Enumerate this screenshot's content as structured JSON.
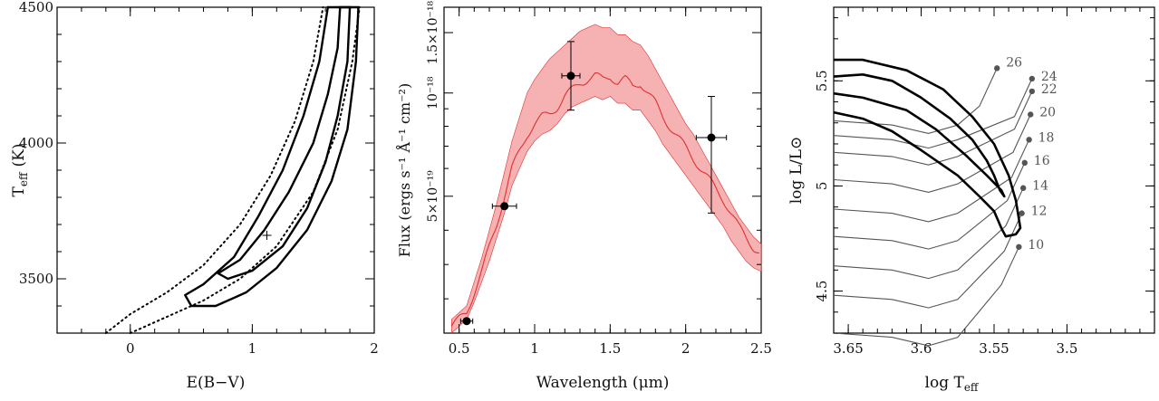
{
  "figure": "three-panel astrophysics figure",
  "chart_data": [
    {
      "type": "contour",
      "panel": "left",
      "xlabel": "E(B−V)",
      "ylabel_main": "T",
      "ylabel_sub": "eff",
      "ylabel_unit": "(K)",
      "xlim": [
        -0.6,
        2.0
      ],
      "ylim": [
        3300,
        4500
      ],
      "xticks": [
        0,
        1,
        2
      ],
      "xtick_labels": [
        "0",
        "1",
        "2"
      ],
      "yticks": [
        3500,
        4000,
        4500
      ],
      "ytick_labels": [
        "3500",
        "4000",
        "4500"
      ],
      "best_fit": {
        "x": 1.12,
        "y": 3660
      },
      "contours": [
        {
          "level": "inner",
          "style": "solid",
          "points": [
            [
              0.72,
              3520
            ],
            [
              0.9,
              3570
            ],
            [
              1.1,
              3680
            ],
            [
              1.3,
              3820
            ],
            [
              1.5,
              4000
            ],
            [
              1.62,
              4180
            ],
            [
              1.7,
              4350
            ],
            [
              1.72,
              4500
            ],
            [
              1.8,
              4500
            ],
            [
              1.78,
              4300
            ],
            [
              1.7,
              4100
            ],
            [
              1.6,
              3930
            ],
            [
              1.45,
              3760
            ],
            [
              1.25,
              3620
            ],
            [
              1.0,
              3530
            ],
            [
              0.8,
              3500
            ],
            [
              0.72,
              3520
            ]
          ]
        },
        {
          "level": "outer",
          "style": "solid",
          "points": [
            [
              0.45,
              3440
            ],
            [
              0.6,
              3480
            ],
            [
              0.85,
              3580
            ],
            [
              1.05,
              3730
            ],
            [
              1.25,
              3900
            ],
            [
              1.42,
              4100
            ],
            [
              1.55,
              4300
            ],
            [
              1.62,
              4500
            ],
            [
              1.87,
              4500
            ],
            [
              1.85,
              4300
            ],
            [
              1.78,
              4050
            ],
            [
              1.65,
              3860
            ],
            [
              1.45,
              3680
            ],
            [
              1.2,
              3540
            ],
            [
              0.95,
              3450
            ],
            [
              0.7,
              3400
            ],
            [
              0.5,
              3400
            ],
            [
              0.45,
              3440
            ]
          ]
        },
        {
          "level": "outer-dotted",
          "style": "dotted",
          "points": [
            [
              -0.2,
              3300
            ],
            [
              0.0,
              3370
            ],
            [
              0.3,
              3450
            ],
            [
              0.6,
              3550
            ],
            [
              0.9,
              3700
            ],
            [
              1.15,
              3880
            ],
            [
              1.35,
              4080
            ],
            [
              1.5,
              4300
            ],
            [
              1.58,
              4500
            ]
          ]
        },
        {
          "level": "outer-dotted-2",
          "style": "dotted",
          "points": [
            [
              0.0,
              3300
            ],
            [
              0.3,
              3360
            ],
            [
              0.6,
              3420
            ],
            [
              0.9,
              3500
            ],
            [
              1.2,
              3620
            ],
            [
              1.5,
              3820
            ],
            [
              1.7,
              4050
            ],
            [
              1.82,
              4300
            ],
            [
              1.88,
              4500
            ]
          ]
        }
      ]
    },
    {
      "type": "line",
      "panel": "middle",
      "xlabel": "Wavelength (μm)",
      "ylabel": "Flux (ergs s⁻¹ Å⁻¹ cm⁻²)",
      "xlim": [
        0.4,
        2.5
      ],
      "xticks": [
        0.5,
        1.0,
        1.5,
        2.0,
        2.5
      ],
      "xtick_labels": [
        "0.5",
        "1",
        "1.5",
        "2",
        "2.5"
      ],
      "ylim_log": [
        -18.7,
        -17.75
      ],
      "ytick_values": [
        -18.301,
        -18.0,
        -17.824
      ],
      "ytick_labels": [
        "5×10⁻¹⁹",
        "10⁻¹⁸",
        "1.5×10⁻¹⁸"
      ],
      "model_color": "#e03030",
      "band_color": "#f4a3a5",
      "model": {
        "x": [
          0.45,
          0.5,
          0.55,
          0.6,
          0.65,
          0.7,
          0.75,
          0.8,
          0.85,
          0.9,
          0.95,
          1.0,
          1.05,
          1.1,
          1.15,
          1.2,
          1.25,
          1.3,
          1.35,
          1.4,
          1.45,
          1.5,
          1.55,
          1.6,
          1.65,
          1.7,
          1.75,
          1.8,
          1.85,
          1.9,
          1.95,
          2.0,
          2.05,
          2.1,
          2.15,
          2.2,
          2.25,
          2.3,
          2.35,
          2.4,
          2.45,
          2.5
        ],
        "y": [
          -18.68,
          -18.66,
          -18.64,
          -18.58,
          -18.52,
          -18.45,
          -18.38,
          -18.3,
          -18.22,
          -18.17,
          -18.12,
          -18.09,
          -18.07,
          -18.06,
          -18.04,
          -18.01,
          -17.99,
          -17.97,
          -17.96,
          -17.95,
          -17.96,
          -17.95,
          -17.97,
          -17.96,
          -17.98,
          -17.97,
          -18.0,
          -18.03,
          -18.07,
          -18.1,
          -18.13,
          -18.16,
          -18.19,
          -18.22,
          -18.25,
          -18.28,
          -18.31,
          -18.35,
          -18.39,
          -18.42,
          -18.45,
          -18.47
        ],
        "lower": [
          -18.7,
          -18.68,
          -18.66,
          -18.61,
          -18.55,
          -18.49,
          -18.42,
          -18.35,
          -18.27,
          -18.22,
          -18.17,
          -18.14,
          -18.12,
          -18.11,
          -18.09,
          -18.06,
          -18.04,
          -18.03,
          -18.02,
          -18.01,
          -18.02,
          -18.01,
          -18.03,
          -18.03,
          -18.05,
          -18.05,
          -18.08,
          -18.11,
          -18.15,
          -18.18,
          -18.21,
          -18.24,
          -18.27,
          -18.3,
          -18.33,
          -18.36,
          -18.39,
          -18.43,
          -18.46,
          -18.49,
          -18.51,
          -18.52
        ],
        "upper": [
          -18.66,
          -18.64,
          -18.62,
          -18.55,
          -18.48,
          -18.4,
          -18.32,
          -18.23,
          -18.14,
          -18.07,
          -18.0,
          -17.96,
          -17.93,
          -17.9,
          -17.88,
          -17.86,
          -17.84,
          -17.82,
          -17.81,
          -17.8,
          -17.81,
          -17.81,
          -17.83,
          -17.83,
          -17.85,
          -17.86,
          -17.89,
          -17.93,
          -17.97,
          -18.01,
          -18.05,
          -18.09,
          -18.12,
          -18.16,
          -18.2,
          -18.24,
          -18.28,
          -18.32,
          -18.36,
          -18.39,
          -18.42,
          -18.44
        ]
      },
      "points": [
        {
          "x": 0.55,
          "y": -18.665,
          "xerr": 0.04,
          "yerr_low": 0.0,
          "yerr_high": 0.0
        },
        {
          "x": 0.8,
          "y": -18.33,
          "xerr": 0.08,
          "yerr_low": 0.0,
          "yerr_high": 0.0
        },
        {
          "x": 1.24,
          "y": -17.95,
          "xerr": 0.06,
          "yerr_low": 0.1,
          "yerr_high": 0.1
        },
        {
          "x": 2.17,
          "y": -18.13,
          "xerr": 0.1,
          "yerr_low": 0.22,
          "yerr_high": 0.12
        }
      ]
    },
    {
      "type": "line",
      "panel": "right",
      "xlabel_main": "log T",
      "xlabel_sub": "eff",
      "ylabel": "log L/L⊙",
      "xlim": [
        3.66,
        3.44
      ],
      "ylim": [
        4.3,
        5.85
      ],
      "xticks": [
        3.65,
        3.6,
        3.55,
        3.5
      ],
      "xtick_labels": [
        "3.65",
        "3.6",
        "3.55",
        "3.5"
      ],
      "yticks": [
        4.5,
        5.0,
        5.5
      ],
      "ytick_labels": [
        "4.5",
        "5",
        "5.5"
      ],
      "track_color": "#555555",
      "tracks": [
        {
          "label": "26",
          "end": [
            3.548,
            5.56
          ]
        },
        {
          "label": "24",
          "end": [
            3.524,
            5.51
          ]
        },
        {
          "label": "22",
          "end": [
            3.524,
            5.45
          ]
        },
        {
          "label": "20",
          "end": [
            3.525,
            5.34
          ]
        },
        {
          "label": "18",
          "end": [
            3.526,
            5.22
          ]
        },
        {
          "label": "16",
          "end": [
            3.529,
            5.11
          ]
        },
        {
          "label": "14",
          "end": [
            3.53,
            4.99
          ]
        },
        {
          "label": "12",
          "end": [
            3.531,
            4.87
          ]
        },
        {
          "label": "10",
          "end": [
            3.533,
            4.71
          ]
        }
      ],
      "contours": [
        {
          "level": "inner",
          "points": [
            [
              3.66,
              5.44
            ],
            [
              3.64,
              5.42
            ],
            [
              3.61,
              5.36
            ],
            [
              3.59,
              5.27
            ],
            [
              3.57,
              5.15
            ],
            [
              3.555,
              5.05
            ],
            [
              3.545,
              4.98
            ],
            [
              3.543,
              4.95
            ],
            [
              3.546,
              4.98
            ],
            [
              3.55,
              5.05
            ],
            [
              3.555,
              5.12
            ],
            [
              3.565,
              5.22
            ],
            [
              3.58,
              5.32
            ],
            [
              3.6,
              5.42
            ],
            [
              3.62,
              5.5
            ],
            [
              3.64,
              5.53
            ],
            [
              3.66,
              5.52
            ]
          ]
        },
        {
          "level": "outer",
          "points": [
            [
              3.66,
              5.6
            ],
            [
              3.64,
              5.6
            ],
            [
              3.61,
              5.55
            ],
            [
              3.585,
              5.46
            ],
            [
              3.565,
              5.33
            ],
            [
              3.55,
              5.2
            ],
            [
              3.54,
              5.05
            ],
            [
              3.535,
              4.93
            ],
            [
              3.532,
              4.8
            ],
            [
              3.535,
              4.77
            ],
            [
              3.542,
              4.76
            ],
            [
              3.545,
              4.8
            ],
            [
              3.55,
              4.88
            ],
            [
              3.56,
              4.95
            ],
            [
              3.575,
              5.05
            ],
            [
              3.6,
              5.17
            ],
            [
              3.62,
              5.26
            ],
            [
              3.64,
              5.32
            ],
            [
              3.66,
              5.35
            ]
          ]
        }
      ]
    }
  ]
}
